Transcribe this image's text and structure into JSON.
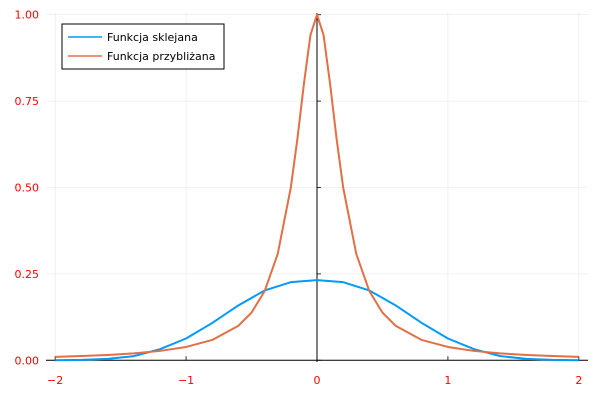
{
  "chart_data": {
    "type": "line",
    "title": "",
    "xlabel": "",
    "ylabel": "",
    "xlim": [
      -2.07,
      2.07
    ],
    "ylim": [
      -0.005,
      1.005
    ],
    "xticks": [
      -2,
      -1,
      0,
      1,
      2
    ],
    "xtick_labels": [
      "−2",
      "−1",
      "0",
      "1",
      "2"
    ],
    "yticks": [
      0,
      0.25,
      0.5,
      0.75,
      1.0
    ],
    "ytick_labels": [
      "0.00",
      "0.25",
      "0.50",
      "0.75",
      "1.00"
    ],
    "grid": true,
    "axes_through_origin": true,
    "legend_position": "top-left",
    "tick_label_color": "#ff0000",
    "series": [
      {
        "name": "Funkcja sklejana",
        "color": "#009af9",
        "x": [
          -2.0,
          -1.8,
          -1.6,
          -1.4,
          -1.2,
          -1.0,
          -0.8,
          -0.6,
          -0.4,
          -0.2,
          0.0,
          0.2,
          0.4,
          0.6,
          0.8,
          1.0,
          1.2,
          1.4,
          1.6,
          1.8,
          2.0
        ],
        "values": [
          0.0,
          0.001,
          0.004,
          0.012,
          0.032,
          0.063,
          0.108,
          0.159,
          0.202,
          0.226,
          0.232,
          0.226,
          0.202,
          0.159,
          0.108,
          0.063,
          0.032,
          0.012,
          0.004,
          0.001,
          0.0
        ]
      },
      {
        "name": "Funkcja przybliżana",
        "color": "#e26f46",
        "x": [
          -2.0,
          -1.8,
          -1.6,
          -1.4,
          -1.2,
          -1.0,
          -0.8,
          -0.6,
          -0.5,
          -0.4,
          -0.3,
          -0.2,
          -0.15,
          -0.1,
          -0.05,
          0.0,
          0.05,
          0.1,
          0.15,
          0.2,
          0.3,
          0.4,
          0.5,
          0.6,
          0.8,
          1.0,
          1.2,
          1.4,
          1.6,
          1.8,
          2.0
        ],
        "values": [
          0.0099,
          0.0122,
          0.0154,
          0.02,
          0.027,
          0.0385,
          0.0588,
          0.1,
          0.1379,
          0.2,
          0.3077,
          0.5,
          0.64,
          0.8,
          0.9412,
          1.0,
          0.9412,
          0.8,
          0.64,
          0.5,
          0.3077,
          0.2,
          0.1379,
          0.1,
          0.0588,
          0.0385,
          0.027,
          0.02,
          0.0154,
          0.0122,
          0.0099
        ]
      }
    ]
  }
}
